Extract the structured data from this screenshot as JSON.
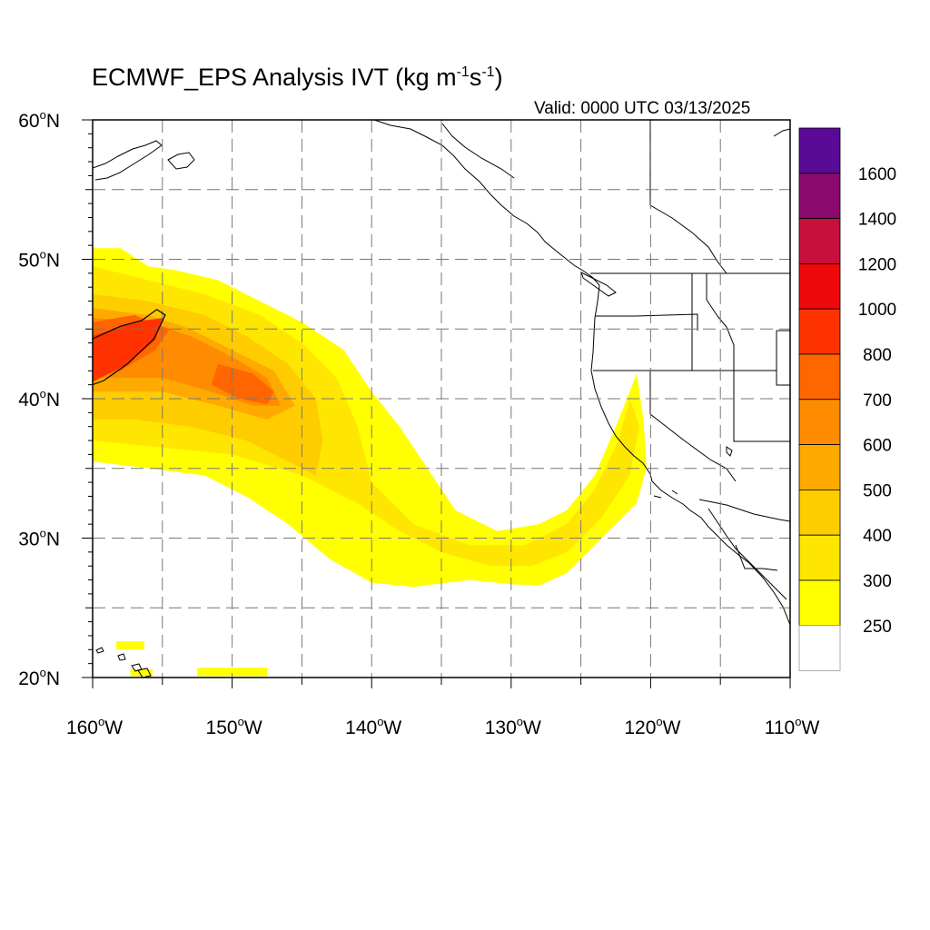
{
  "title": {
    "main": "ECMWF_EPS Analysis IVT (kg m",
    "sup1": "-1",
    "mid": "s",
    "sup2": "-1",
    "end": ")"
  },
  "valid": "Valid: 0000 UTC 03/13/2025",
  "axes": {
    "lat_min": 20,
    "lat_max": 60,
    "lon_min": -160,
    "lon_max": -110,
    "lat_ticks": [
      {
        "value": 60,
        "label": "60"
      },
      {
        "value": 50,
        "label": "50"
      },
      {
        "value": 40,
        "label": "40"
      },
      {
        "value": 30,
        "label": "30"
      },
      {
        "value": 20,
        "label": "20"
      }
    ],
    "lat_suffix": "N",
    "lon_ticks": [
      {
        "value": -160,
        "label": "160"
      },
      {
        "value": -150,
        "label": "150"
      },
      {
        "value": -140,
        "label": "140"
      },
      {
        "value": -130,
        "label": "130"
      },
      {
        "value": -120,
        "label": "120"
      },
      {
        "value": -110,
        "label": "110"
      }
    ],
    "lon_suffix": "W",
    "degree": "o",
    "grid_lats": [
      25,
      30,
      35,
      40,
      45,
      50,
      55
    ],
    "grid_lons": [
      -155,
      -150,
      -145,
      -140,
      -135,
      -130,
      -125,
      -120,
      -115
    ]
  },
  "colorbar": {
    "levels": [
      {
        "label": "250",
        "color": "#ffff00"
      },
      {
        "label": "300",
        "color": "#ffe600"
      },
      {
        "label": "400",
        "color": "#ffcc00"
      },
      {
        "label": "500",
        "color": "#ffaa00"
      },
      {
        "label": "600",
        "color": "#ff8c00"
      },
      {
        "label": "700",
        "color": "#ff6600"
      },
      {
        "label": "800",
        "color": "#ff3300"
      },
      {
        "label": "1000",
        "color": "#ee0a0a"
      },
      {
        "label": "1200",
        "color": "#c8103c"
      },
      {
        "label": "1400",
        "color": "#8b0a6e"
      },
      {
        "label": "1600",
        "color": "#5a0a96"
      }
    ],
    "below_color": "#ffffff"
  },
  "chart_data": {
    "type": "heatmap",
    "variable": "IVT",
    "units": "kg m-1 s-1",
    "regions": [
      {
        "level": 0,
        "coords": [
          [
            -160,
            50.8
          ],
          [
            -158,
            50.8
          ],
          [
            -156,
            49.5
          ],
          [
            -154,
            49.2
          ],
          [
            -151,
            48.5
          ],
          [
            -148,
            47
          ],
          [
            -145,
            45.5
          ],
          [
            -142,
            43.5
          ],
          [
            -140,
            40.5
          ],
          [
            -138,
            38
          ],
          [
            -136,
            35
          ],
          [
            -134,
            32
          ],
          [
            -131,
            30.5
          ],
          [
            -128,
            31
          ],
          [
            -126,
            32
          ],
          [
            -124,
            34.5
          ],
          [
            -122.5,
            38
          ],
          [
            -121.7,
            40
          ],
          [
            -121,
            41.8
          ],
          [
            -120.5,
            38.5
          ],
          [
            -120.3,
            35
          ],
          [
            -121,
            32.5
          ],
          [
            -123.5,
            30
          ],
          [
            -126,
            27.5
          ],
          [
            -128,
            26.6
          ],
          [
            -130,
            26.7
          ],
          [
            -133,
            27
          ],
          [
            -137,
            26.5
          ],
          [
            -140,
            26.8
          ],
          [
            -143,
            28.5
          ],
          [
            -146,
            31
          ],
          [
            -149,
            33
          ],
          [
            -152,
            34.5
          ],
          [
            -156,
            35
          ],
          [
            -160,
            35.5
          ]
        ]
      },
      {
        "level": 0,
        "coords": [
          [
            -158.3,
            22.6
          ],
          [
            -156.3,
            22.6
          ],
          [
            -156.3,
            22
          ],
          [
            -158.3,
            22
          ]
        ]
      },
      {
        "level": 0,
        "coords": [
          [
            -152.5,
            20.7
          ],
          [
            -147.5,
            20.7
          ],
          [
            -147.5,
            20.1
          ],
          [
            -152.5,
            20.1
          ]
        ]
      },
      {
        "level": 0,
        "coords": [
          [
            -157.3,
            20.6
          ],
          [
            -155.7,
            20.6
          ],
          [
            -155.7,
            20.1
          ],
          [
            -157.3,
            20.1
          ]
        ]
      },
      {
        "level": 1,
        "coords": [
          [
            -160,
            49.5
          ],
          [
            -156,
            48.5
          ],
          [
            -152,
            47.5
          ],
          [
            -148,
            46
          ],
          [
            -145,
            44
          ],
          [
            -142.5,
            41.5
          ],
          [
            -141,
            38
          ],
          [
            -140,
            34
          ],
          [
            -137,
            31
          ],
          [
            -133,
            29.5
          ],
          [
            -129,
            29.5
          ],
          [
            -126,
            31
          ],
          [
            -124,
            33.5
          ],
          [
            -122.3,
            37
          ],
          [
            -121.5,
            40
          ],
          [
            -120.8,
            38
          ],
          [
            -121.5,
            34.5
          ],
          [
            -123.5,
            31.5
          ],
          [
            -126,
            29
          ],
          [
            -128.5,
            28
          ],
          [
            -131.5,
            28
          ],
          [
            -135,
            29
          ],
          [
            -138,
            30.5
          ],
          [
            -141,
            32.5
          ],
          [
            -145,
            34.5
          ],
          [
            -150,
            36
          ],
          [
            -155,
            36.5
          ],
          [
            -160,
            37
          ]
        ]
      },
      {
        "level": 2,
        "coords": [
          [
            -160,
            47.5
          ],
          [
            -156,
            47
          ],
          [
            -152,
            46
          ],
          [
            -149,
            44.5
          ],
          [
            -146,
            42.5
          ],
          [
            -144,
            40
          ],
          [
            -143.5,
            37
          ],
          [
            -144,
            34.5
          ],
          [
            -146,
            35.5
          ],
          [
            -149,
            37
          ],
          [
            -153,
            38
          ],
          [
            -157,
            38.5
          ],
          [
            -160,
            38.5
          ]
        ]
      },
      {
        "level": 3,
        "coords": [
          [
            -160,
            46.5
          ],
          [
            -156,
            46
          ],
          [
            -153,
            45
          ],
          [
            -150,
            43.5
          ],
          [
            -147,
            42
          ],
          [
            -145.5,
            39.5
          ],
          [
            -147.5,
            38.5
          ],
          [
            -151,
            39.5
          ],
          [
            -155,
            40.5
          ],
          [
            -160,
            40.5
          ]
        ]
      },
      {
        "level": 4,
        "coords": [
          [
            -160,
            45.8
          ],
          [
            -156,
            45.5
          ],
          [
            -153,
            44.5
          ],
          [
            -150,
            43
          ],
          [
            -147.5,
            41.5
          ],
          [
            -146.5,
            39.5
          ],
          [
            -148.5,
            39.5
          ],
          [
            -151.5,
            40.5
          ],
          [
            -155,
            41.5
          ],
          [
            -160,
            41.5
          ]
        ]
      },
      {
        "level": 5,
        "coords": [
          [
            -151,
            42.5
          ],
          [
            -148.5,
            41.8
          ],
          [
            -147,
            40.5
          ],
          [
            -147.5,
            39.6
          ],
          [
            -149.5,
            40
          ],
          [
            -151.5,
            41
          ]
        ]
      },
      {
        "level": 5,
        "coords": [
          [
            -160,
            45.5
          ],
          [
            -157,
            46
          ],
          [
            -154.5,
            45
          ],
          [
            -155.5,
            43.5
          ],
          [
            -158,
            42
          ],
          [
            -160,
            41.5
          ]
        ]
      },
      {
        "level": 6,
        "coords": [
          [
            -160,
            44.5
          ],
          [
            -157,
            45.5
          ],
          [
            -155,
            45.8
          ],
          [
            -155.5,
            44.2
          ],
          [
            -157.5,
            42.5
          ],
          [
            -160,
            41.2
          ]
        ]
      }
    ],
    "contour_1000": [
      [
        -160,
        44.3
      ],
      [
        -158,
        45.2
      ],
      [
        -156.5,
        45.6
      ],
      [
        -155.4,
        46.4
      ],
      [
        -154.8,
        46
      ],
      [
        -155.6,
        44.3
      ],
      [
        -157.5,
        42.5
      ],
      [
        -159.2,
        41.3
      ],
      [
        -160,
        41
      ]
    ]
  }
}
